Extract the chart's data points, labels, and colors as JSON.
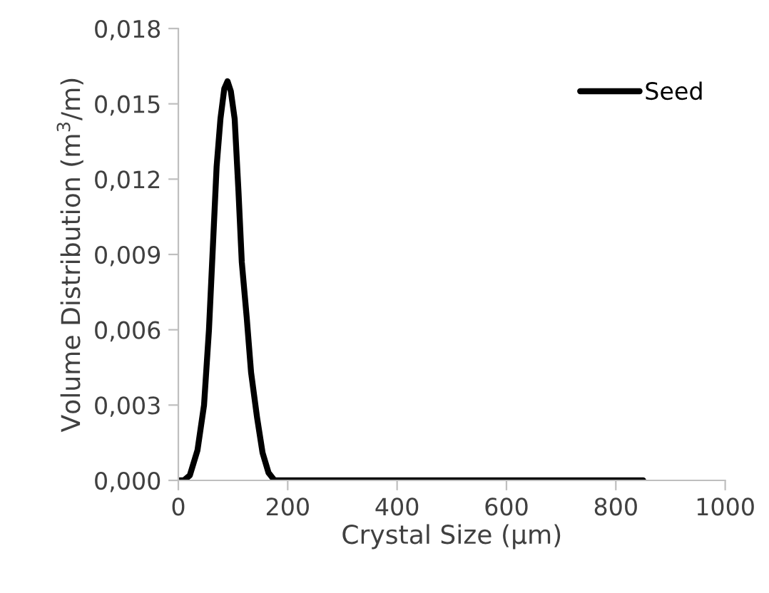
{
  "chart_data": {
    "type": "line",
    "xlabel": "Crystal Size (µm)",
    "ylabel": "Volume Distribution (m$^{3}$/m)",
    "series": [
      {
        "name": "Seed",
        "color": "#000000",
        "x": [
          0,
          10,
          21,
          35,
          47,
          56,
          64,
          70,
          77,
          84,
          90,
          96,
          103,
          110,
          116,
          125,
          133,
          144,
          154,
          165,
          176,
          190,
          250,
          400,
          600,
          850
        ],
        "values": [
          0,
          0,
          0.0002,
          0.0012,
          0.003,
          0.006,
          0.0097,
          0.0125,
          0.0144,
          0.0156,
          0.0159,
          0.0155,
          0.0144,
          0.0115,
          0.0087,
          0.0065,
          0.0043,
          0.0025,
          0.0011,
          0.0003,
          0,
          0,
          0,
          0,
          0,
          0
        ]
      }
    ],
    "xlim": [
      0,
      1000
    ],
    "xticks": [
      0,
      200,
      400,
      600,
      800,
      1000
    ],
    "ylim": [
      0,
      0.018
    ],
    "yticks": [
      {
        "value": 0,
        "label": "0,000"
      },
      {
        "value": 0.003,
        "label": "0,003"
      },
      {
        "value": 0.006,
        "label": "0,006"
      },
      {
        "value": 0.009,
        "label": "0,009"
      },
      {
        "value": 0.012,
        "label": "0,012"
      },
      {
        "value": 0.015,
        "label": "0,015"
      },
      {
        "value": 0.018,
        "label": "0,018"
      }
    ],
    "grid": false,
    "legend": "top right",
    "marker": "none",
    "line_style": "solid"
  }
}
